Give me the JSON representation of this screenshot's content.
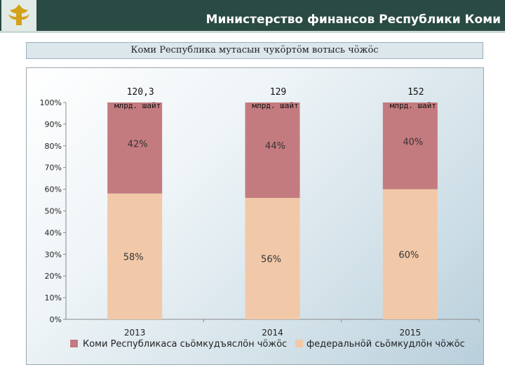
{
  "header": {
    "title": "Министерство финансов Республики Коми"
  },
  "colors": {
    "header_bg": "#2a4a44",
    "series_top": "#c47b7f",
    "series_bottom": "#f1c9a8"
  },
  "chart_data": {
    "type": "bar",
    "stacked": true,
    "title": "Коми Республика мутасын чукӧртӧм вотысь чӧжӧс",
    "categories": [
      "2013",
      "2014",
      "2015"
    ],
    "series": [
      {
        "name": "федеральнӧй сьӧмкудлӧн чӧжӧс",
        "values": [
          58,
          56,
          60
        ],
        "labels": [
          "58%",
          "56%",
          "60%"
        ],
        "color": "#f1c9a8"
      },
      {
        "name": "Коми Республикаса сьӧмкудъяслӧн чӧжӧс",
        "values": [
          42,
          44,
          40
        ],
        "labels": [
          "42%",
          "44%",
          "40%"
        ],
        "color": "#c47b7f"
      }
    ],
    "totals": [
      {
        "value": "120,3",
        "unit": "млрд. шайт"
      },
      {
        "value": "129",
        "unit": "млрд. шайт"
      },
      {
        "value": "152",
        "unit": "млрд. шайт"
      }
    ],
    "ylim": [
      0,
      100
    ],
    "yticks": [
      "0%",
      "10%",
      "20%",
      "30%",
      "40%",
      "50%",
      "60%",
      "70%",
      "80%",
      "90%",
      "100%"
    ],
    "grid": false,
    "legend": "bottom"
  }
}
